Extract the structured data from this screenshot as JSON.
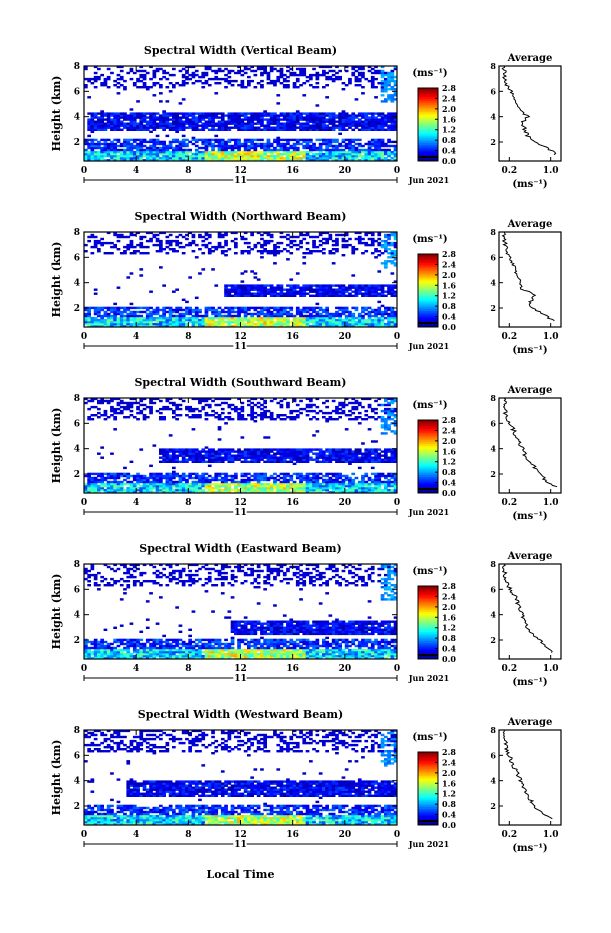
{
  "figure": {
    "xlabel": "Local Time",
    "date_label": "Jun 2021",
    "day_label": "11"
  },
  "chart_data": [
    {
      "type": "heatmap",
      "title": "Spectral Width (Vertical Beam)",
      "xlabel": "",
      "ylabel": "Height (km)",
      "xlim": [
        0,
        24
      ],
      "ylim": [
        0.5,
        8
      ],
      "x_ticks": [
        "0",
        "4",
        "8",
        "12",
        "16",
        "20",
        "0"
      ],
      "y_ticks": [
        "2",
        "4",
        "6",
        "8"
      ],
      "colorbar": {
        "unit": "(ms⁻¹)",
        "ticks": [
          "0.0",
          "0.4",
          "0.8",
          "1.2",
          "1.6",
          "2.0",
          "2.4",
          "2.8"
        ],
        "range": [
          0,
          2.8
        ]
      },
      "profile": {
        "title": "Average",
        "xlabel": "(ms⁻¹)",
        "x_ticks": [
          "0.2",
          "1.0"
        ],
        "y_ticks": [
          "2",
          "4",
          "6",
          "8"
        ],
        "xlim": [
          0,
          1.2
        ],
        "ylim": [
          0.5,
          8
        ],
        "height_km": [
          1.0,
          1.5,
          2.0,
          2.5,
          3.0,
          3.5,
          4.0,
          4.5,
          5.0,
          5.5,
          6.0,
          6.5,
          7.0,
          7.5,
          8.0
        ],
        "width_ms": [
          1.1,
          0.95,
          0.7,
          0.55,
          0.5,
          0.45,
          0.55,
          0.4,
          0.35,
          0.3,
          0.25,
          0.15,
          0.12,
          0.1,
          0.1
        ]
      }
    },
    {
      "type": "heatmap",
      "title": "Spectral Width (Northward Beam)",
      "xlabel": "",
      "ylabel": "Height (km)",
      "xlim": [
        0,
        24
      ],
      "ylim": [
        0.5,
        8
      ],
      "x_ticks": [
        "0",
        "4",
        "8",
        "12",
        "16",
        "20",
        "0"
      ],
      "y_ticks": [
        "2",
        "4",
        "6",
        "8"
      ],
      "colorbar": {
        "unit": "(ms⁻¹)",
        "ticks": [
          "0.0",
          "0.4",
          "0.8",
          "1.2",
          "1.6",
          "2.0",
          "2.4",
          "2.8"
        ],
        "range": [
          0,
          2.8
        ]
      },
      "profile": {
        "title": "Average",
        "xlabel": "(ms⁻¹)",
        "x_ticks": [
          "0.2",
          "1.0"
        ],
        "y_ticks": [
          "2",
          "4",
          "6",
          "8"
        ],
        "xlim": [
          0,
          1.2
        ],
        "ylim": [
          0.5,
          8
        ],
        "height_km": [
          1.0,
          1.5,
          2.0,
          2.5,
          3.0,
          3.5,
          4.0,
          4.5,
          5.0,
          5.5,
          6.0,
          6.5,
          7.0,
          7.5,
          8.0
        ],
        "width_ms": [
          1.05,
          0.85,
          0.65,
          0.6,
          0.7,
          0.45,
          0.4,
          0.35,
          0.3,
          0.28,
          0.22,
          0.15,
          0.12,
          0.1,
          0.1
        ]
      }
    },
    {
      "type": "heatmap",
      "title": "Spectral Width (Southward Beam)",
      "xlabel": "",
      "ylabel": "Height (km)",
      "xlim": [
        0,
        24
      ],
      "ylim": [
        0.5,
        8
      ],
      "x_ticks": [
        "0",
        "4",
        "8",
        "12",
        "16",
        "20",
        "0"
      ],
      "y_ticks": [
        "2",
        "4",
        "6",
        "8"
      ],
      "colorbar": {
        "unit": "(ms⁻¹)",
        "ticks": [
          "0.0",
          "0.4",
          "0.8",
          "1.2",
          "1.6",
          "2.0",
          "2.4",
          "2.8"
        ],
        "range": [
          0,
          2.8
        ]
      },
      "profile": {
        "title": "Average",
        "xlabel": "(ms⁻¹)",
        "x_ticks": [
          "0.2",
          "1.0"
        ],
        "y_ticks": [
          "2",
          "4",
          "6",
          "8"
        ],
        "xlim": [
          0,
          1.2
        ],
        "ylim": [
          0.5,
          8
        ],
        "height_km": [
          1.0,
          1.5,
          2.0,
          2.5,
          3.0,
          3.5,
          4.0,
          4.5,
          5.0,
          5.5,
          6.0,
          6.5,
          7.0,
          7.5,
          8.0
        ],
        "width_ms": [
          1.1,
          0.9,
          0.8,
          0.7,
          0.6,
          0.5,
          0.45,
          0.4,
          0.33,
          0.28,
          0.2,
          0.14,
          0.12,
          0.12,
          0.1
        ]
      }
    },
    {
      "type": "heatmap",
      "title": "Spectral Width (Eastward Beam)",
      "xlabel": "",
      "ylabel": "Height (km)",
      "xlim": [
        0,
        24
      ],
      "ylim": [
        0.5,
        8
      ],
      "x_ticks": [
        "0",
        "4",
        "8",
        "12",
        "16",
        "20",
        "0"
      ],
      "y_ticks": [
        "2",
        "4",
        "6",
        "8"
      ],
      "colorbar": {
        "unit": "(ms⁻¹)",
        "ticks": [
          "0.0",
          "0.4",
          "0.8",
          "1.2",
          "1.6",
          "2.0",
          "2.4",
          "2.8"
        ],
        "range": [
          0,
          2.8
        ]
      },
      "profile": {
        "title": "Average",
        "xlabel": "(ms⁻¹)",
        "x_ticks": [
          "0.2",
          "1.0"
        ],
        "y_ticks": [
          "2",
          "4",
          "6",
          "8"
        ],
        "xlim": [
          0,
          1.2
        ],
        "ylim": [
          0.5,
          8
        ],
        "height_km": [
          1.0,
          1.5,
          2.0,
          2.5,
          3.0,
          3.5,
          4.0,
          4.5,
          5.0,
          5.5,
          6.0,
          6.5,
          7.0,
          7.5,
          8.0
        ],
        "width_ms": [
          1.05,
          0.9,
          0.8,
          0.65,
          0.55,
          0.5,
          0.45,
          0.4,
          0.35,
          0.3,
          0.22,
          0.15,
          0.12,
          0.1,
          0.1
        ]
      }
    },
    {
      "type": "heatmap",
      "title": "Spectral Width (Westward Beam)",
      "xlabel": "Local Time",
      "ylabel": "Height (km)",
      "xlim": [
        0,
        24
      ],
      "ylim": [
        0.5,
        8
      ],
      "x_ticks": [
        "0",
        "4",
        "8",
        "12",
        "16",
        "20",
        "0"
      ],
      "y_ticks": [
        "2",
        "4",
        "6",
        "8"
      ],
      "colorbar": {
        "unit": "(ms⁻¹)",
        "ticks": [
          "0.0",
          "0.4",
          "0.8",
          "1.2",
          "1.6",
          "2.0",
          "2.4",
          "2.8"
        ],
        "range": [
          0,
          2.8
        ]
      },
      "profile": {
        "title": "Average",
        "xlabel": "(ms⁻¹)",
        "x_ticks": [
          "0.2",
          "1.0"
        ],
        "y_ticks": [
          "2",
          "4",
          "6",
          "8"
        ],
        "xlim": [
          0,
          1.2
        ],
        "ylim": [
          0.5,
          8
        ],
        "height_km": [
          1.0,
          1.5,
          2.0,
          2.5,
          3.0,
          3.5,
          4.0,
          4.5,
          5.0,
          5.5,
          6.0,
          6.5,
          7.0,
          7.5,
          8.0
        ],
        "width_ms": [
          1.0,
          0.8,
          0.7,
          0.6,
          0.55,
          0.48,
          0.42,
          0.36,
          0.3,
          0.25,
          0.2,
          0.14,
          0.12,
          0.1,
          0.1
        ]
      }
    }
  ]
}
